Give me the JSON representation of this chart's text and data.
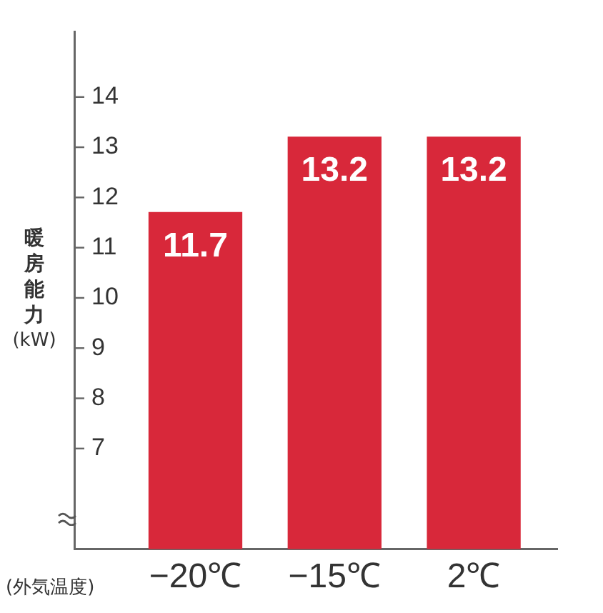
{
  "chart_data": {
    "type": "bar",
    "categories": [
      "−20℃",
      "−15℃",
      "2℃"
    ],
    "values": [
      11.7,
      13.2,
      13.2
    ],
    "color": "#d8283a",
    "data_labels": true,
    "ylabel": "暖房能力\n(kW)",
    "xlabel": "(外気温度)",
    "ylim": [
      5,
      15.3
    ],
    "yticks": [
      7,
      8,
      9,
      10,
      11,
      12,
      13,
      14
    ],
    "grid": false,
    "legend": false
  }
}
